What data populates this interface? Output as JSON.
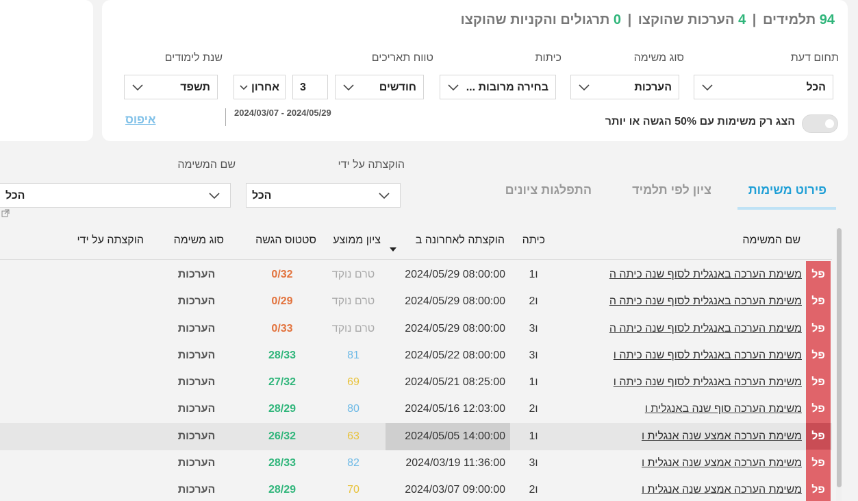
{
  "summary": {
    "students_count": "94",
    "students_label": "תלמידים",
    "assessments_count": "4",
    "assessments_label": "הערכות שהוקצו",
    "exercises_count": "0",
    "exercises_label": "תרגולים והקניות שהוקצו"
  },
  "filters": {
    "subject_label": "תחום דעת",
    "subject_value": "הכל",
    "task_type_label": "סוג משימה",
    "task_type_value": "הערכות",
    "class_label": "כיתות",
    "class_value": "בחירה מרובות ...",
    "date_range_label": "טווח תאריכים",
    "date_unit_value": "חודשים",
    "date_amount_value": "3",
    "date_direction_value": "אחרון",
    "school_year_label": "שנת לימודים",
    "school_year_value": "תשפד",
    "date_range_text": "2024/03/07 - 2024/05/29",
    "reset_label": "איפוס",
    "toggle_label": "הצג רק משימות עם 50% הגשה או יותר"
  },
  "tabs": [
    {
      "label": "פירוט משימות"
    },
    {
      "label": "ציון לפי תלמיד"
    },
    {
      "label": "התפלגות ציונים"
    }
  ],
  "table_filters": {
    "assigned_by_label": "הוקצתה על ידי",
    "assigned_by_value": "הכל",
    "task_name_label": "שם המשימה",
    "task_name_value": "הכל"
  },
  "table": {
    "columns": {
      "name": "שם המשימה",
      "class": "כיתה",
      "last_assigned": "הוקצתה לאחרונה ב",
      "avg_grade": "ציון ממוצע",
      "status": "סטטוס הגשה",
      "type": "סוג משימה",
      "assigned_by": "הוקצתה על ידי"
    },
    "rows": [
      {
        "badge": "פל",
        "name": "משימת הערכה באנגלית לסוף שנה כיתה ה",
        "class": "ו1",
        "date": "2024/05/29 08:00:00",
        "grade": "טרם נוקד",
        "status": "0/32",
        "type": "הערכות"
      },
      {
        "badge": "פל",
        "name": "משימת הערכה באנגלית לסוף שנה כיתה ה",
        "class": "ו2",
        "date": "2024/05/29 08:00:00",
        "grade": "טרם נוקד",
        "status": "0/29",
        "type": "הערכות"
      },
      {
        "badge": "פל",
        "name": "משימת הערכה באנגלית לסוף שנה כיתה ה",
        "class": "ו3",
        "date": "2024/05/29 08:00:00",
        "grade": "טרם נוקד",
        "status": "0/33",
        "type": "הערכות"
      },
      {
        "badge": "פל",
        "name": "משימת הערכה באנגלית לסוף שנה כיתה ו",
        "class": "ו3",
        "date": "2024/05/22 08:00:00",
        "grade": "81",
        "status": "28/33",
        "type": "הערכות"
      },
      {
        "badge": "פל",
        "name": "משימת הערכה באנגלית לסוף שנה כיתה ו",
        "class": "ו1",
        "date": "2024/05/21 08:25:00",
        "grade": "69",
        "status": "27/32",
        "type": "הערכות"
      },
      {
        "badge": "פל",
        "name": "משימת הערכה סוף שנה באנגלית ו",
        "class": "ו2",
        "date": "2024/05/16 12:03:00",
        "grade": "80",
        "status": "28/29",
        "type": "הערכות"
      },
      {
        "badge": "פל",
        "name": "משימת הערכה אמצע שנה אנגלית ו",
        "class": "ו1",
        "date": "2024/05/05 14:00:00",
        "grade": "63",
        "status": "26/32",
        "type": "הערכות"
      },
      {
        "badge": "פל",
        "name": "משימת הערכה אמצע שנה אנגלית ו",
        "class": "ו3",
        "date": "2024/03/19 11:36:00",
        "grade": "82",
        "status": "28/33",
        "type": "הערכות"
      },
      {
        "badge": "פל",
        "name": "משימת הערכה אמצע שנה אנגלית ו",
        "class": "ו2",
        "date": "2024/03/07 09:00:00",
        "grade": "70",
        "status": "28/29",
        "type": "הערכות"
      }
    ]
  },
  "colors": {
    "accent_green": "#2fb57a",
    "tab_active": "#1f9fd6",
    "badge_red": "#e0646a",
    "status_red": "#e2723c",
    "grade_blue": "#6cb9e6",
    "grade_yellow": "#e8c23a"
  }
}
